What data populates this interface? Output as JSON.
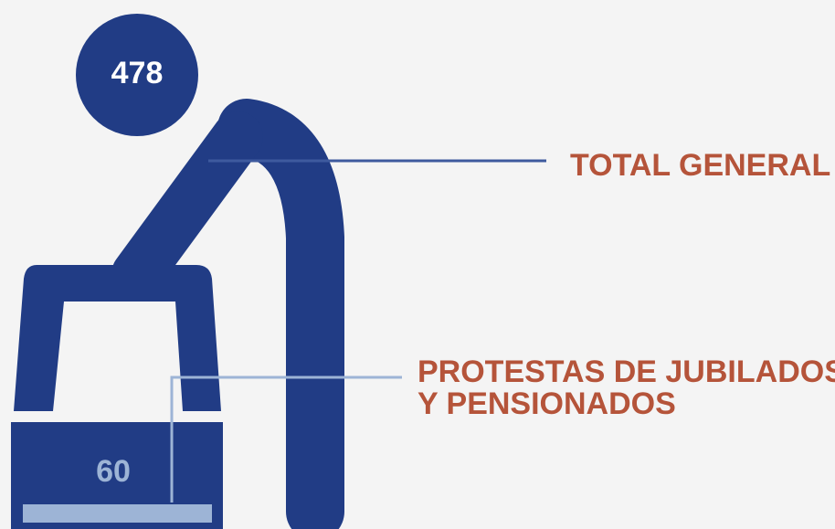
{
  "total": {
    "value": 478,
    "label": "TOTAL GENERAL"
  },
  "subset": {
    "value": 60,
    "label_lines": [
      "PROTESTAS DE JUBILADOS",
      "Y PENSIONADOS"
    ]
  }
}
